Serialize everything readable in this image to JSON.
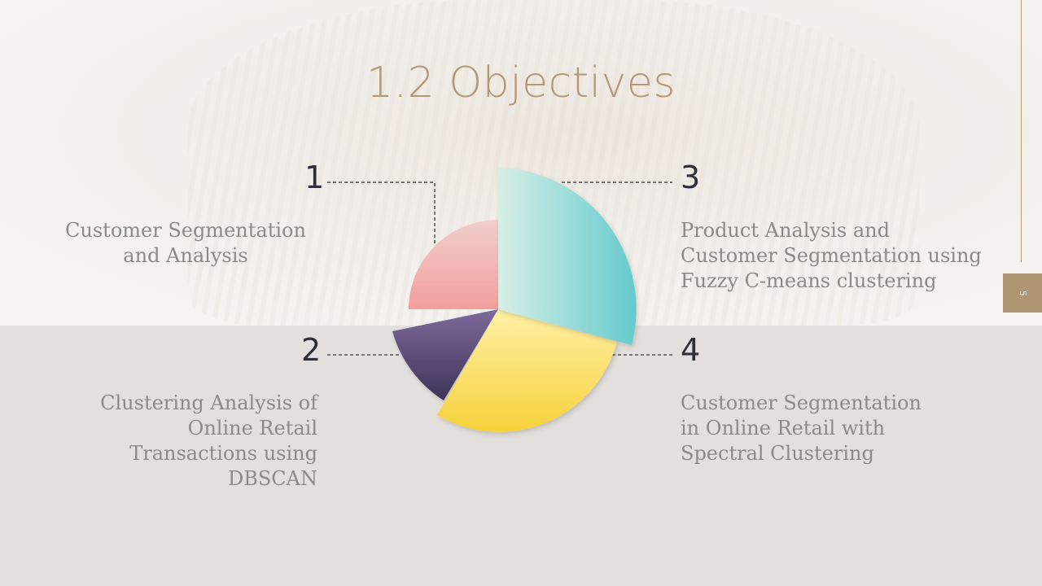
{
  "slide": {
    "title": "1.2 Objectives",
    "page_number": "5"
  },
  "objectives": [
    {
      "number": "1",
      "text": "Customer Segmentation and Analysis",
      "lines": [
        "Customer Segmentation",
        "and Analysis"
      ]
    },
    {
      "number": "2",
      "text": "Clustering Analysis of Online Retail Transactions using DBSCAN",
      "lines": [
        "Clustering Analysis of",
        "Online Retail",
        "Transactions using",
        "DBSCAN"
      ]
    },
    {
      "number": "3",
      "text": "Product Analysis and Customer Segmentation using Fuzzy C-means clustering",
      "lines": [
        "Product Analysis and",
        "Customer Segmentation using",
        "Fuzzy C-means clustering"
      ]
    },
    {
      "number": "4",
      "text": "Customer Segmentation in Online Retail with Spectral Clustering",
      "lines": [
        "Customer Segmentation",
        "in Online Retail with",
        "Spectral Clustering"
      ]
    }
  ],
  "colors": {
    "accent": "#b09574",
    "title": "#b09a76",
    "segment_pink": "#f3a6a3",
    "segment_purple": "#5a4a78",
    "segment_yellow": "#f7d94c",
    "segment_teal": "#72cfcf"
  }
}
